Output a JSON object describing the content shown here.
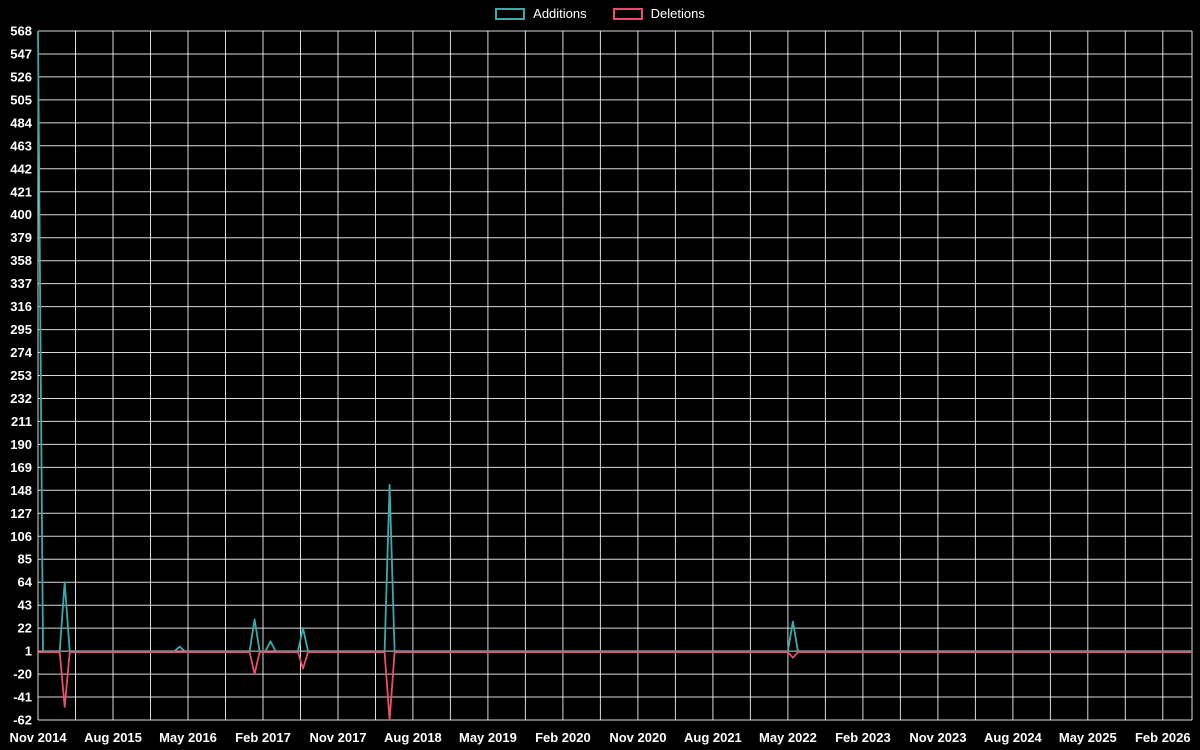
{
  "chart_data": {
    "type": "line",
    "title": "",
    "background": "#000000",
    "text_color": "#ffffff",
    "legend": [
      {
        "label": "Additions",
        "color": "#3aabad"
      },
      {
        "label": "Deletions",
        "color": "#ed4d6d"
      }
    ],
    "x_axis": {
      "tick_labels": [
        "Nov 2014",
        "Aug 2015",
        "May 2016",
        "Feb 2017",
        "Nov 2017",
        "Aug 2018",
        "May 2019",
        "Feb 2020",
        "Nov 2020",
        "Aug 2021",
        "May 2022",
        "Feb 2023",
        "Nov 2023",
        "Aug 2024",
        "May 2025",
        "Feb 2026"
      ],
      "tick_months": [
        0,
        9,
        18,
        27,
        36,
        45,
        54,
        63,
        72,
        81,
        90,
        99,
        108,
        117,
        126,
        135
      ],
      "range_months": [
        0,
        138.5
      ]
    },
    "y_axis": {
      "ticks": [
        568,
        547,
        526,
        505,
        484,
        463,
        442,
        421,
        400,
        379,
        358,
        337,
        316,
        295,
        274,
        253,
        232,
        211,
        190,
        169,
        148,
        127,
        106,
        85,
        64,
        43,
        22,
        1,
        -20,
        -41,
        -62
      ],
      "range": [
        -62,
        568
      ]
    },
    "grid": {
      "color": "#ffffff",
      "opacity": 0.85,
      "vertical_step_months": 4.5
    },
    "series": [
      {
        "name": "Additions",
        "color": "#3aabad",
        "points": [
          [
            0,
            568
          ],
          [
            0.6,
            1
          ],
          [
            2.6,
            1
          ],
          [
            3.2,
            64
          ],
          [
            3.8,
            1
          ],
          [
            16.4,
            1
          ],
          [
            17,
            5
          ],
          [
            17.6,
            1
          ],
          [
            25.4,
            1
          ],
          [
            26,
            30
          ],
          [
            26.6,
            1
          ],
          [
            27.3,
            1
          ],
          [
            27.9,
            10
          ],
          [
            28.5,
            1
          ],
          [
            31.2,
            1
          ],
          [
            31.8,
            22
          ],
          [
            32.4,
            1
          ],
          [
            41.6,
            1
          ],
          [
            42.2,
            153
          ],
          [
            42.8,
            1
          ],
          [
            90,
            1
          ],
          [
            90.6,
            28
          ],
          [
            91.2,
            1
          ],
          [
            138.5,
            1
          ]
        ]
      },
      {
        "name": "Deletions",
        "color": "#ed4d6d",
        "points": [
          [
            0,
            0
          ],
          [
            2.6,
            0
          ],
          [
            3.2,
            -50
          ],
          [
            3.8,
            0
          ],
          [
            25.4,
            0
          ],
          [
            26,
            -20
          ],
          [
            26.6,
            0
          ],
          [
            31.2,
            0
          ],
          [
            31.8,
            -15
          ],
          [
            32.4,
            0
          ],
          [
            41.6,
            0
          ],
          [
            42.2,
            -62
          ],
          [
            42.8,
            0
          ],
          [
            90,
            0
          ],
          [
            90.6,
            -5
          ],
          [
            91.2,
            0
          ],
          [
            138.5,
            0
          ]
        ]
      }
    ]
  }
}
